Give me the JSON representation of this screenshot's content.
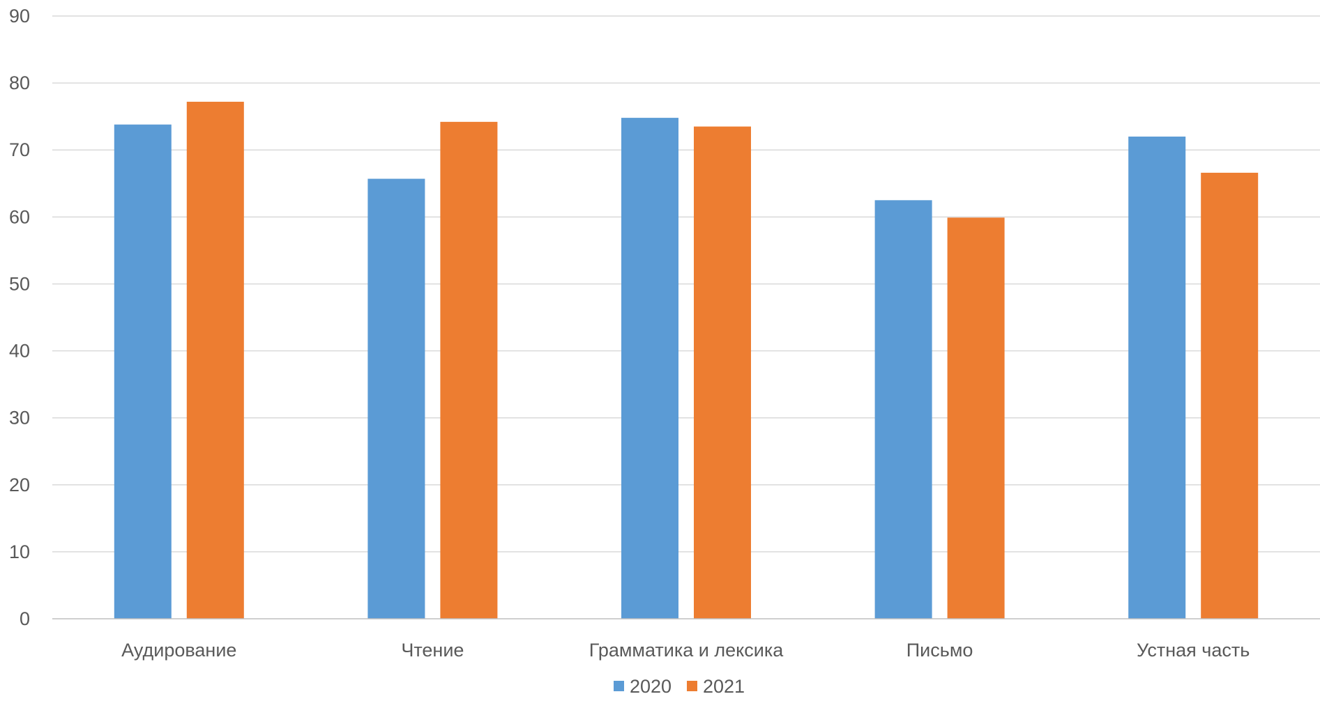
{
  "chart_data": {
    "type": "bar",
    "categories": [
      "Аудирование",
      "Чтение",
      "Грамматика и лексика",
      "Письмо",
      "Устная часть"
    ],
    "series": [
      {
        "name": "2020",
        "color": "#5B9BD5",
        "values": [
          73.8,
          65.7,
          74.8,
          62.5,
          72.0
        ]
      },
      {
        "name": "2021",
        "color": "#ED7D31",
        "values": [
          77.2,
          74.2,
          73.5,
          59.9,
          66.6
        ]
      }
    ],
    "ylim": [
      0,
      90
    ],
    "yticks": [
      0,
      10,
      20,
      30,
      40,
      50,
      60,
      70,
      80,
      90
    ],
    "grid": true,
    "legend_position": "bottom",
    "gridline_color": "#D9D9D9",
    "axis_color": "#BFBFBF"
  }
}
